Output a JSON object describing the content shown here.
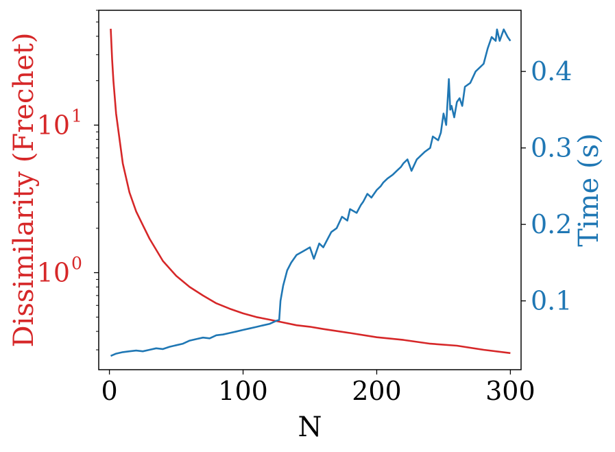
{
  "chart_data": {
    "type": "line",
    "title": "",
    "xlabel": "N",
    "x_ticks": [
      0,
      100,
      200,
      300
    ],
    "xlim": [
      -8,
      308
    ],
    "grid": false,
    "legend": "none",
    "y_left": {
      "label": "Dissimilarity (Frechet)",
      "scale": "log",
      "ylim": [
        0.22,
        60
      ],
      "major_ticks": [
        {
          "value": 1,
          "label_base": "10",
          "label_exp": "0"
        },
        {
          "value": 10,
          "label_base": "10",
          "label_exp": "1"
        }
      ],
      "color": "#d62728"
    },
    "y_right": {
      "label": "Time (s)",
      "scale": "linear",
      "ylim": [
        0.01,
        0.48
      ],
      "ticks": [
        "0.1",
        "0.2",
        "0.3",
        "0.4"
      ],
      "color": "#1f77b4"
    },
    "series": [
      {
        "axis": "left",
        "color": "#d62728",
        "x": [
          1,
          2,
          3,
          5,
          8,
          10,
          15,
          20,
          25,
          30,
          40,
          50,
          60,
          70,
          80,
          90,
          100,
          110,
          120,
          130,
          140,
          150,
          160,
          180,
          200,
          220,
          240,
          260,
          280,
          300
        ],
        "y": [
          45,
          28,
          20,
          12,
          7.5,
          5.5,
          3.5,
          2.6,
          2.1,
          1.7,
          1.2,
          0.95,
          0.8,
          0.7,
          0.62,
          0.57,
          0.53,
          0.5,
          0.48,
          0.46,
          0.44,
          0.43,
          0.415,
          0.39,
          0.365,
          0.35,
          0.33,
          0.32,
          0.3,
          0.285
        ]
      },
      {
        "axis": "right",
        "color": "#1f77b4",
        "x": [
          1,
          5,
          10,
          15,
          20,
          25,
          30,
          35,
          40,
          45,
          50,
          55,
          60,
          65,
          70,
          75,
          80,
          85,
          90,
          95,
          100,
          105,
          110,
          115,
          120,
          125,
          127,
          128,
          130,
          133,
          136,
          140,
          145,
          150,
          153,
          157,
          160,
          163,
          166,
          170,
          174,
          178,
          180,
          185,
          188,
          190,
          193,
          196,
          200,
          203,
          205,
          208,
          212,
          215,
          218,
          220,
          223,
          226,
          230,
          233,
          236,
          240,
          242,
          246,
          248,
          250,
          252,
          254,
          255,
          256,
          258,
          260,
          262,
          264,
          266,
          270,
          274,
          277,
          280,
          283,
          286,
          289,
          290,
          292,
          295,
          298,
          300
        ],
        "y": [
          0.028,
          0.031,
          0.033,
          0.034,
          0.035,
          0.034,
          0.036,
          0.038,
          0.037,
          0.04,
          0.042,
          0.044,
          0.048,
          0.05,
          0.052,
          0.051,
          0.055,
          0.056,
          0.058,
          0.06,
          0.062,
          0.064,
          0.066,
          0.068,
          0.07,
          0.074,
          0.075,
          0.1,
          0.12,
          0.14,
          0.15,
          0.16,
          0.165,
          0.17,
          0.155,
          0.175,
          0.17,
          0.18,
          0.19,
          0.195,
          0.21,
          0.205,
          0.22,
          0.215,
          0.225,
          0.23,
          0.24,
          0.235,
          0.245,
          0.25,
          0.255,
          0.26,
          0.265,
          0.27,
          0.275,
          0.28,
          0.285,
          0.27,
          0.285,
          0.29,
          0.295,
          0.3,
          0.315,
          0.31,
          0.32,
          0.345,
          0.33,
          0.39,
          0.35,
          0.355,
          0.34,
          0.36,
          0.365,
          0.355,
          0.38,
          0.385,
          0.4,
          0.405,
          0.41,
          0.43,
          0.445,
          0.44,
          0.455,
          0.44,
          0.455,
          0.445,
          0.44
        ]
      }
    ]
  }
}
